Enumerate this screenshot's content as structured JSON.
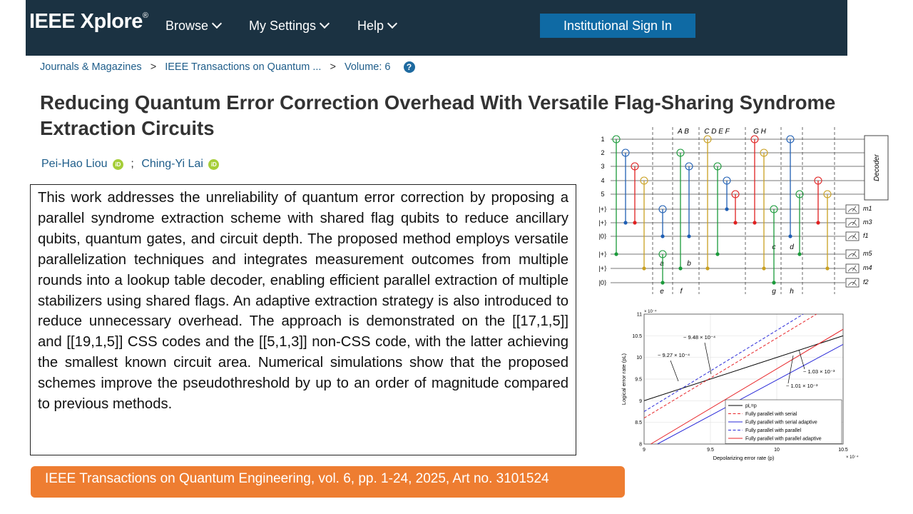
{
  "header": {
    "logo": "IEEE Xplore",
    "logo_mark": "®",
    "nav": [
      "Browse",
      "My Settings",
      "Help"
    ],
    "sign_in": "Institutional Sign In"
  },
  "breadcrumb": {
    "items": [
      "Journals & Magazines",
      "IEEE Transactions on Quantum ...",
      "Volume: 6"
    ],
    "separator": ">",
    "help_icon": "?"
  },
  "article": {
    "title": "Reducing Quantum Error Correction Overhead With Versatile Flag-Sharing Syndrome Extraction Circuits",
    "authors": [
      "Pei-Hao Liou",
      "Ching-Yi Lai"
    ],
    "author_separator": ";",
    "orcid_icon": "iD",
    "abstract": "This work addresses the unreliability of quantum error correction by proposing a parallel syndrome extraction scheme with shared flag qubits to reduce ancillary qubits, quantum gates, and circuit depth. The proposed method employs versatile parallelization techniques and integrates measurement outcomes from multiple rounds into a lookup table decoder, enabling efficient parallel extraction of multiple stabilizers using shared flags. An adaptive extraction strategy is also introduced to reduce unnecessary overhead. The approach is demonstrated on the [[17,1,5]] and [[19,1,5]] CSS codes and the [[5,1,3]] non-CSS code, with the latter achieving the smallest known circuit area. Numerical simulations show that the proposed schemes improve the pseudothreshold by up to an order of magnitude compared to previous methods.",
    "citation": "IEEE Transactions on Quantum Engineering, vol. 6, pp. 1-24, 2025, Art no. 3101524"
  },
  "circuit": {
    "row_labels": [
      "1",
      "2",
      "3",
      "4",
      "5",
      "|+⟩",
      "|+⟩",
      "|0⟩",
      "|+⟩",
      "|+⟩",
      "|0⟩"
    ],
    "column_groups": [
      "A B",
      "C D E F",
      "G H"
    ],
    "gate_letters": [
      "a",
      "b",
      "c",
      "d",
      "e",
      "f",
      "g",
      "h"
    ],
    "outputs": [
      "m1",
      "m3",
      "f1",
      "m5",
      "m4",
      "f2"
    ],
    "decoder": "Decoder"
  },
  "plot": {
    "type": "line",
    "xlabel": "Depolarizing error rate (p)",
    "ylabel": "Logical error rate (pL)",
    "x_exponent": "× 10⁻⁴",
    "y_exponent": "× 10⁻⁴",
    "xlim": [
      9,
      10.5
    ],
    "ylim": [
      8,
      11
    ],
    "xticks": [
      9,
      9.5,
      10,
      10.5
    ],
    "yticks": [
      8,
      8.5,
      9,
      9.5,
      10,
      10.5,
      11
    ],
    "grid": true,
    "series": [
      {
        "name": "pL=p",
        "color": "#000000",
        "dash": false,
        "x": [
          9,
          10.5
        ],
        "values": [
          9,
          10.5
        ]
      },
      {
        "name": "Fully parallel with serial",
        "color": "#e8262a",
        "dash": true,
        "x": [
          9,
          10.3
        ],
        "values": [
          8.6,
          11
        ]
      },
      {
        "name": "Fully parallel with serial adaptive",
        "color": "#2a2ad8",
        "dash": false,
        "x": [
          9.1,
          10.5
        ],
        "values": [
          8,
          10.3
        ]
      },
      {
        "name": "Fully parallel with parallel",
        "color": "#2a2ad8",
        "dash": true,
        "x": [
          9,
          10.2
        ],
        "values": [
          8.75,
          11
        ]
      },
      {
        "name": "Fully parallel with parallel adaptive",
        "color": "#e8262a",
        "dash": false,
        "x": [
          9.05,
          10.5
        ],
        "values": [
          8,
          10.65
        ]
      }
    ],
    "annotations": [
      "~ 9.27 × 10⁻⁴",
      "~ 9.48 × 10⁻⁴",
      "~ 1.03 × 10⁻³",
      "~ 1.01 × 10⁻³"
    ]
  }
}
